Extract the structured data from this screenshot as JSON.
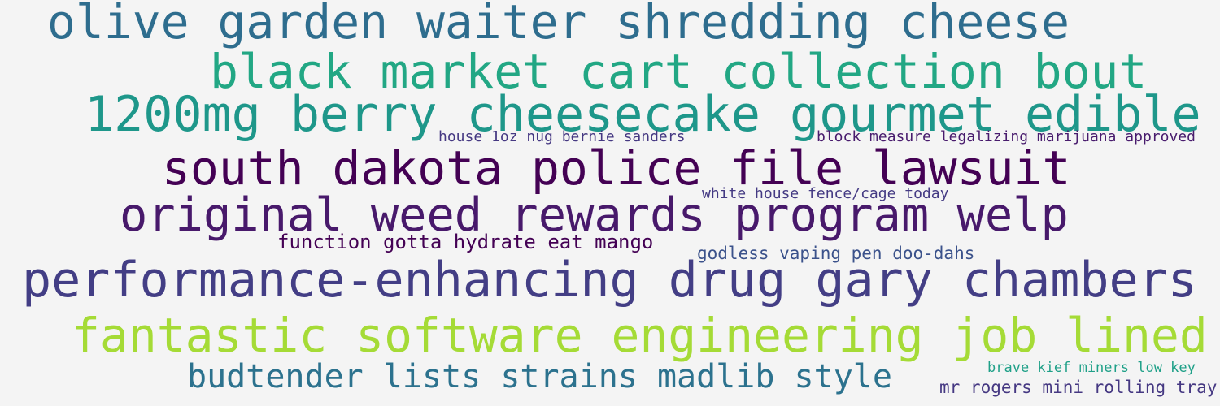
{
  "cloud": {
    "phrases": [
      {
        "text": "olive garden waiter shredding cheese",
        "color": "#2e6d8e"
      },
      {
        "text": "black market cart collection bout",
        "color": "#22a784"
      },
      {
        "text": "1200mg berry cheesecake gourmet edible",
        "color": "#1e978a"
      },
      {
        "text": "house 1oz nug bernie sanders",
        "color": "#453882"
      },
      {
        "text": "block measure legalizing marijuana approved",
        "color": "#481b6d"
      },
      {
        "text": "south dakota police file lawsuit",
        "color": "#440154"
      },
      {
        "text": "white house fence/cage today",
        "color": "#443a83"
      },
      {
        "text": "original weed rewards program welp",
        "color": "#48196b"
      },
      {
        "text": "function gotta hydrate eat mango",
        "color": "#440154"
      },
      {
        "text": "godless vaping pen doo-dahs",
        "color": "#3b528b"
      },
      {
        "text": "performance-enhancing drug gary chambers",
        "color": "#433e85"
      },
      {
        "text": "fantastic software engineering job lined",
        "color": "#a5db36"
      },
      {
        "text": "budtender lists strains madlib style",
        "color": "#2c728e"
      },
      {
        "text": "brave kief miners low key",
        "color": "#1fa088"
      },
      {
        "text": "mr rogers mini rolling tray",
        "color": "#453882"
      }
    ]
  }
}
